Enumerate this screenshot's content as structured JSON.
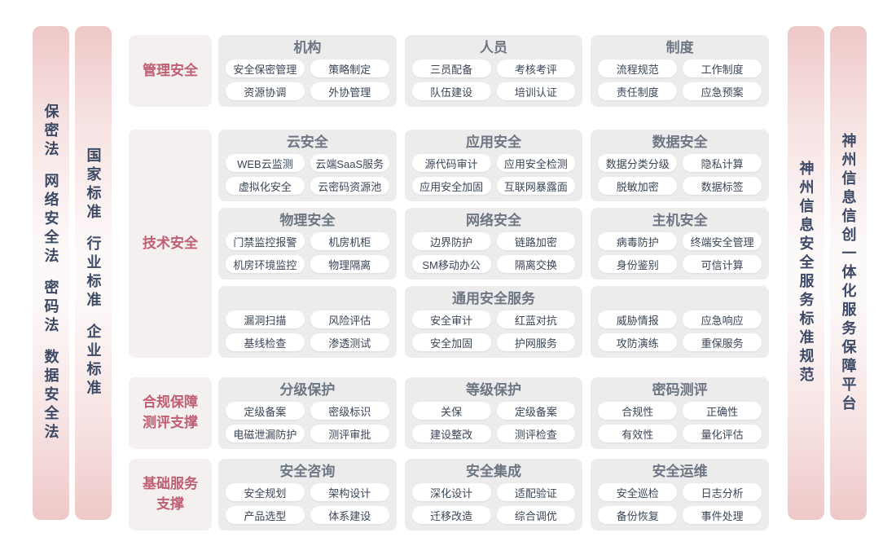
{
  "colors": {
    "bar_pink": "#efc8c8",
    "row_label_bg": "#f4f0f0",
    "row_label_text": "#c05e72",
    "panel_bg": "#ececec",
    "group_title_text": "#6d7683",
    "chip_bg": "#ffffff",
    "chip_text": "#3a4656",
    "sidebar_text": "#3c4a66"
  },
  "side_bars": {
    "left_outer": {
      "items": [
        "保密法",
        "网络安全法",
        "密码法",
        "数据安全法"
      ]
    },
    "left_inner": {
      "items": [
        "国家标准",
        "行业标准",
        "企业标准"
      ]
    },
    "right_inner": {
      "items": [
        "神州信息安全服务标准规范"
      ]
    },
    "right_outer": {
      "items": [
        "神州信息信创一体化服务保障平台"
      ]
    }
  },
  "rows": [
    {
      "label_lines": [
        "管理安全"
      ],
      "bands": [
        {
          "groups": [
            {
              "title": "机构",
              "items": [
                "安全保密管理",
                "策略制定",
                "资源协调",
                "外协管理"
              ]
            },
            {
              "title": "人员",
              "items": [
                "三员配备",
                "考核考评",
                "队伍建设",
                "培训认证"
              ]
            },
            {
              "title": "制度",
              "items": [
                "流程规范",
                "工作制度",
                "责任制度",
                "应急预案"
              ]
            }
          ]
        }
      ]
    },
    {
      "label_lines": [
        "技术安全"
      ],
      "bands": [
        {
          "groups": [
            {
              "title": "云安全",
              "items": [
                "WEB云监测",
                "云端SaaS服务",
                "虚拟化安全",
                "云密码资源池"
              ]
            },
            {
              "title": "应用安全",
              "items": [
                "源代码审计",
                "应用安全检测",
                "应用安全加固",
                "互联网暴露面"
              ]
            },
            {
              "title": "数据安全",
              "items": [
                "数据分类分级",
                "隐私计算",
                "脱敏加密",
                "数据标签"
              ]
            }
          ]
        },
        {
          "groups": [
            {
              "title": "物理安全",
              "items": [
                "门禁监控报警",
                "机房机柜",
                "机房环境监控",
                "物理隔离"
              ]
            },
            {
              "title": "网络安全",
              "items": [
                "边界防护",
                "链路加密",
                "SM移动办公",
                "隔离交换"
              ]
            },
            {
              "title": "主机安全",
              "items": [
                "病毒防护",
                "终端安全管理",
                "身份鉴别",
                "可信计算"
              ]
            }
          ]
        },
        {
          "groups": [
            {
              "title": "",
              "items": [
                "漏洞扫描",
                "风险评估",
                "基线检查",
                "渗透测试"
              ]
            },
            {
              "title": "通用安全服务",
              "items": [
                "安全审计",
                "红蓝对抗",
                "安全加固",
                "护网服务"
              ]
            },
            {
              "title": "",
              "items": [
                "威胁情报",
                "应急响应",
                "攻防演练",
                "重保服务"
              ]
            }
          ]
        }
      ]
    },
    {
      "label_lines": [
        "合规保障",
        "测评支撑"
      ],
      "bands": [
        {
          "groups": [
            {
              "title": "分级保护",
              "items": [
                "定级备案",
                "密级标识",
                "电磁泄漏防护",
                "测评审批"
              ]
            },
            {
              "title": "等级保护",
              "items": [
                "关保",
                "定级备案",
                "建设整改",
                "测评检查"
              ]
            },
            {
              "title": "密码测评",
              "items": [
                "合规性",
                "正确性",
                "有效性",
                "量化评估"
              ]
            }
          ]
        }
      ]
    },
    {
      "label_lines": [
        "基础服务",
        "支撑"
      ],
      "bands": [
        {
          "groups": [
            {
              "title": "安全咨询",
              "items": [
                "安全规划",
                "架构设计",
                "产品选型",
                "体系建设"
              ]
            },
            {
              "title": "安全集成",
              "items": [
                "深化设计",
                "适配验证",
                "迁移改造",
                "综合调优"
              ]
            },
            {
              "title": "安全运维",
              "items": [
                "安全巡检",
                "日志分析",
                "备份恢复",
                "事件处理"
              ]
            }
          ]
        }
      ]
    }
  ]
}
